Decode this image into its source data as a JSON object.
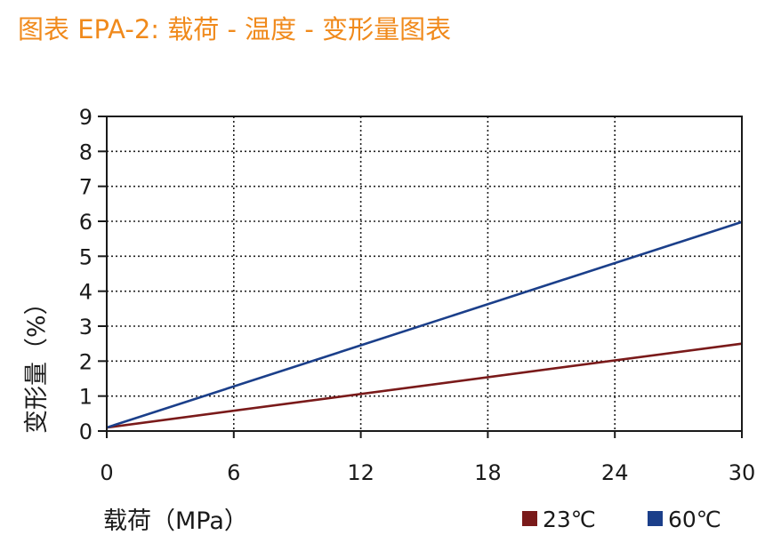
{
  "title": "图表 EPA-2: 载荷 - 温度 - 变形量图表",
  "chart_data": {
    "type": "line",
    "xlabel": "载荷（MPa）",
    "ylabel": "变形量（%）",
    "xlim": [
      0,
      30
    ],
    "ylim": [
      0,
      9
    ],
    "xticks": [
      "0",
      "6",
      "12",
      "18",
      "24",
      "30"
    ],
    "yticks": [
      "0",
      "1",
      "2",
      "3",
      "4",
      "5",
      "6",
      "7",
      "8",
      "9"
    ],
    "grid": true,
    "legend": "bottom-right",
    "series": [
      {
        "name": "23℃",
        "color": "#7a1a1a",
        "x": [
          0,
          30
        ],
        "y": [
          0.1,
          2.5
        ]
      },
      {
        "name": "60℃",
        "color": "#1b3f8a",
        "x": [
          0,
          30
        ],
        "y": [
          0.1,
          5.98
        ]
      }
    ]
  }
}
